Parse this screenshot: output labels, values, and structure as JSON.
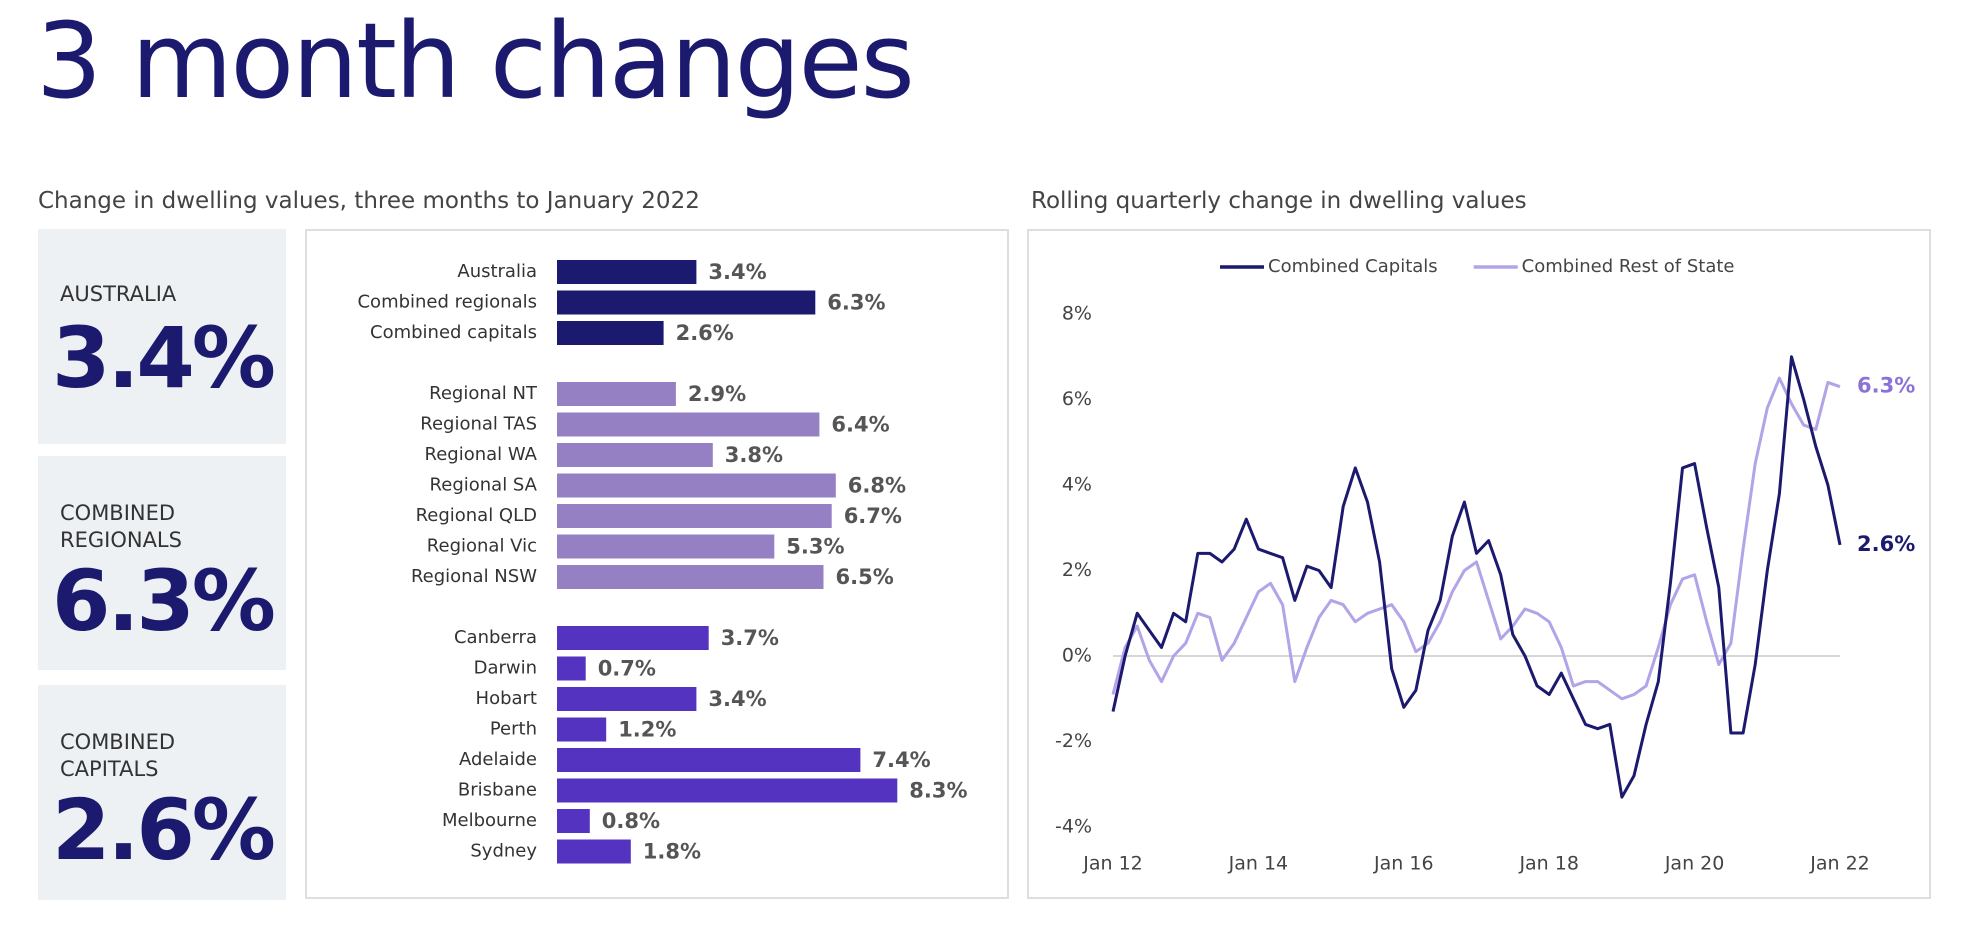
{
  "title": "3 month changes",
  "cards": [
    {
      "label": "AUSTRALIA",
      "value": "3.4%"
    },
    {
      "label": "COMBINED REGIONALS",
      "value": "6.3%"
    },
    {
      "label": "COMBINED CAPITALS",
      "value": "2.6%"
    }
  ],
  "chart_data": [
    {
      "type": "hbar",
      "title": "Change in dwelling values, three  months to January 2022",
      "groups": [
        {
          "color": "#1b1a6f",
          "categories": [
            "Australia",
            "Combined regionals",
            "Combined capitals"
          ],
          "values": [
            3.4,
            6.3,
            2.6
          ],
          "value_labels": [
            "3.4%",
            "6.3%",
            "2.6%"
          ]
        },
        {
          "color": "#9580c4",
          "categories": [
            "Regional NT",
            "Regional TAS",
            "Regional WA",
            "Regional SA",
            "Regional QLD",
            "Regional Vic",
            "Regional NSW"
          ],
          "values": [
            2.9,
            6.4,
            3.8,
            6.8,
            6.7,
            5.3,
            6.5
          ],
          "value_labels": [
            "2.9%",
            "6.4%",
            "3.8%",
            "6.8%",
            "6.7%",
            "5.3%",
            "6.5%"
          ]
        },
        {
          "color": "#5533c1",
          "categories": [
            "Canberra",
            "Darwin",
            "Hobart",
            "Perth",
            "Adelaide",
            "Brisbane",
            "Melbourne",
            "Sydney"
          ],
          "values": [
            3.7,
            0.7,
            3.4,
            1.2,
            7.4,
            8.3,
            0.8,
            1.8
          ],
          "value_labels": [
            "3.7%",
            "0.7%",
            "3.4%",
            "1.2%",
            "7.4%",
            "8.3%",
            "0.8%",
            "1.8%"
          ]
        }
      ]
    },
    {
      "type": "line",
      "title": "Rolling quarterly change in dwelling values",
      "legend": "top",
      "x": [
        "2012-01",
        "2012-03",
        "2012-05",
        "2012-07",
        "2012-09",
        "2012-11",
        "2013-01",
        "2013-03",
        "2013-05",
        "2013-07",
        "2013-09",
        "2013-11",
        "2014-01",
        "2014-03",
        "2014-05",
        "2014-07",
        "2014-09",
        "2014-11",
        "2015-01",
        "2015-03",
        "2015-05",
        "2015-07",
        "2015-09",
        "2015-11",
        "2016-01",
        "2016-03",
        "2016-05",
        "2016-07",
        "2016-09",
        "2016-11",
        "2017-01",
        "2017-03",
        "2017-05",
        "2017-07",
        "2017-09",
        "2017-11",
        "2018-01",
        "2018-03",
        "2018-05",
        "2018-07",
        "2018-09",
        "2018-11",
        "2019-01",
        "2019-03",
        "2019-05",
        "2019-07",
        "2019-09",
        "2019-11",
        "2020-01",
        "2020-03",
        "2020-05",
        "2020-07",
        "2020-09",
        "2020-11",
        "2021-01",
        "2021-03",
        "2021-05",
        "2021-07",
        "2021-09",
        "2021-11",
        "2022-01"
      ],
      "xticks": [
        {
          "value": "2012-01",
          "label": "Jan 12"
        },
        {
          "value": "2014-01",
          "label": "Jan 14"
        },
        {
          "value": "2016-01",
          "label": "Jan 16"
        },
        {
          "value": "2018-01",
          "label": "Jan 18"
        },
        {
          "value": "2020-01",
          "label": "Jan 20"
        },
        {
          "value": "2022-01",
          "label": "Jan 22"
        }
      ],
      "ylim": [
        -4,
        8
      ],
      "yticks": [
        {
          "value": -4,
          "label": "-4%"
        },
        {
          "value": -2,
          "label": "-2%"
        },
        {
          "value": 0,
          "label": "0%"
        },
        {
          "value": 2,
          "label": "2%"
        },
        {
          "value": 4,
          "label": "4%"
        },
        {
          "value": 6,
          "label": "6%"
        },
        {
          "value": 8,
          "label": "8%"
        }
      ],
      "zero_line": true,
      "series": [
        {
          "name": "Combined Capitals",
          "color": "#1b1a6f",
          "end_label": "2.6%",
          "values": [
            -1.3,
            0.0,
            1.0,
            0.6,
            0.2,
            1.0,
            0.8,
            2.4,
            2.4,
            2.2,
            2.5,
            3.2,
            2.5,
            2.4,
            2.3,
            1.3,
            2.1,
            2.0,
            1.6,
            3.5,
            4.4,
            3.6,
            2.2,
            -0.3,
            -1.2,
            -0.8,
            0.6,
            1.3,
            2.8,
            3.6,
            2.4,
            2.7,
            1.9,
            0.5,
            0.0,
            -0.7,
            -0.9,
            -0.4,
            -1.0,
            -1.6,
            -1.7,
            -1.6,
            -3.3,
            -2.8,
            -1.6,
            -0.6,
            1.7,
            4.4,
            4.5,
            3.0,
            1.6,
            -1.8,
            -1.8,
            -0.2,
            2.0,
            3.8,
            7.0,
            6.0,
            4.9,
            4.0,
            2.6
          ]
        },
        {
          "name": "Combined Rest of State",
          "color": "#b3a3e8",
          "end_label": "6.3%",
          "values": [
            -0.9,
            0.2,
            0.7,
            -0.1,
            -0.6,
            0.0,
            0.3,
            1.0,
            0.9,
            -0.1,
            0.3,
            0.9,
            1.5,
            1.7,
            1.2,
            -0.6,
            0.2,
            0.9,
            1.3,
            1.2,
            0.8,
            1.0,
            1.1,
            1.2,
            0.8,
            0.1,
            0.3,
            0.8,
            1.5,
            2.0,
            2.2,
            1.3,
            0.4,
            0.7,
            1.1,
            1.0,
            0.8,
            0.2,
            -0.7,
            -0.6,
            -0.6,
            -0.8,
            -1.0,
            -0.9,
            -0.7,
            0.2,
            1.2,
            1.8,
            1.9,
            0.8,
            -0.2,
            0.3,
            2.5,
            4.5,
            5.8,
            6.5,
            5.9,
            5.4,
            5.3,
            6.4,
            6.3
          ]
        }
      ]
    }
  ]
}
